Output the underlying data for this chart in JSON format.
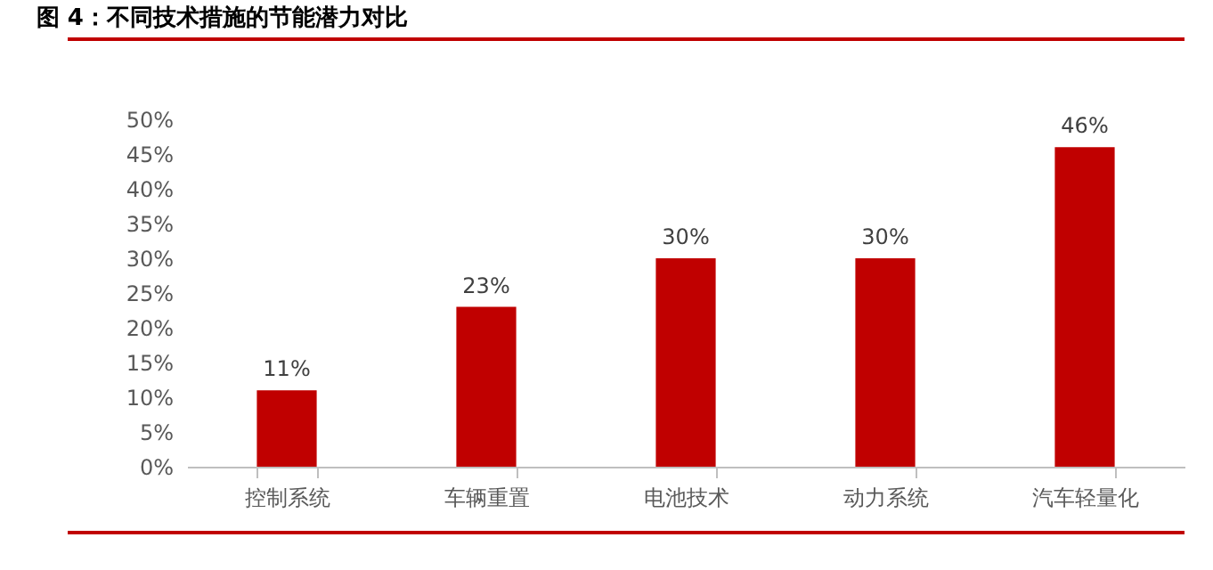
{
  "chart_data": {
    "type": "bar",
    "title": "图 4：不同技术措施的节能潜力对比",
    "categories": [
      "控制系统",
      "车辆重置",
      "电池技术",
      "动力系统",
      "汽车轻量化"
    ],
    "values": [
      11,
      23,
      30,
      30,
      46
    ],
    "color": "#c00000",
    "ylim": [
      0,
      50
    ],
    "yticks": [
      {
        "value": 0,
        "label": "0%"
      },
      {
        "value": 5,
        "label": "5%"
      },
      {
        "value": 10,
        "label": "10%"
      },
      {
        "value": 15,
        "label": "15%"
      },
      {
        "value": 20,
        "label": "20%"
      },
      {
        "value": 25,
        "label": "25%"
      },
      {
        "value": 30,
        "label": "30%"
      },
      {
        "value": 35,
        "label": "35%"
      },
      {
        "value": 40,
        "label": "40%"
      },
      {
        "value": 45,
        "label": "45%"
      },
      {
        "value": 50,
        "label": "50%"
      }
    ],
    "value_labels": [
      "11%",
      "23%",
      "30%",
      "30%",
      "46%"
    ],
    "grid": false
  }
}
